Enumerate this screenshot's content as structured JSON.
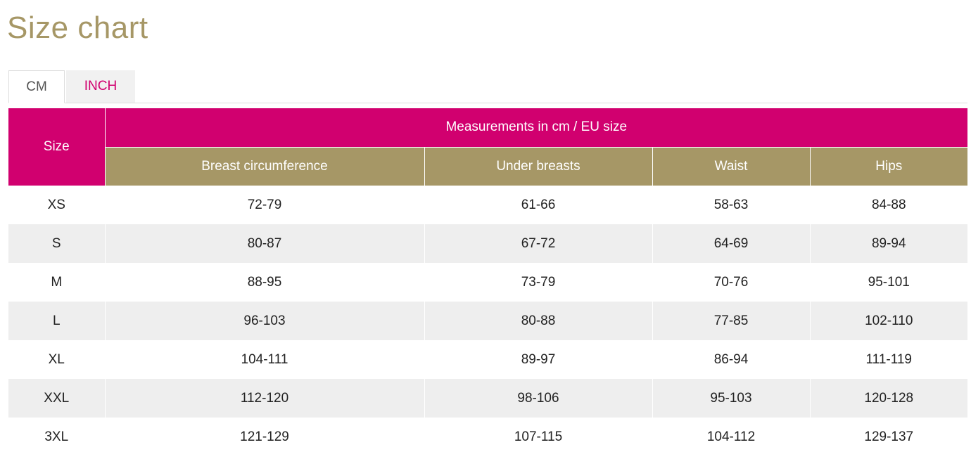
{
  "page": {
    "title": "Size chart"
  },
  "tabs": [
    {
      "label": "CM",
      "active": true
    },
    {
      "label": "INCH",
      "active": false
    }
  ],
  "table": {
    "size_header": "Size",
    "group_header": "Measurements in cm / EU size",
    "columns": [
      "Breast circumference",
      "Under breasts",
      "Waist",
      "Hips"
    ],
    "rows": [
      [
        "XS",
        "72-79",
        "61-66",
        "58-63",
        "84-88"
      ],
      [
        "S",
        "80-87",
        "67-72",
        "64-69",
        "89-94"
      ],
      [
        "M",
        "88-95",
        "73-79",
        "70-76",
        "95-101"
      ],
      [
        "L",
        "96-103",
        "80-88",
        "77-85",
        "102-110"
      ],
      [
        "XL",
        "104-111",
        "89-97",
        "86-94",
        "111-119"
      ],
      [
        "XXL",
        "112-120",
        "98-106",
        "95-103",
        "120-128"
      ],
      [
        "3XL",
        "121-129",
        "107-115",
        "104-112",
        "129-137"
      ]
    ]
  },
  "colors": {
    "accent": "#d1006f",
    "gold": "#a69766",
    "row_alt": "#eeeeee"
  }
}
